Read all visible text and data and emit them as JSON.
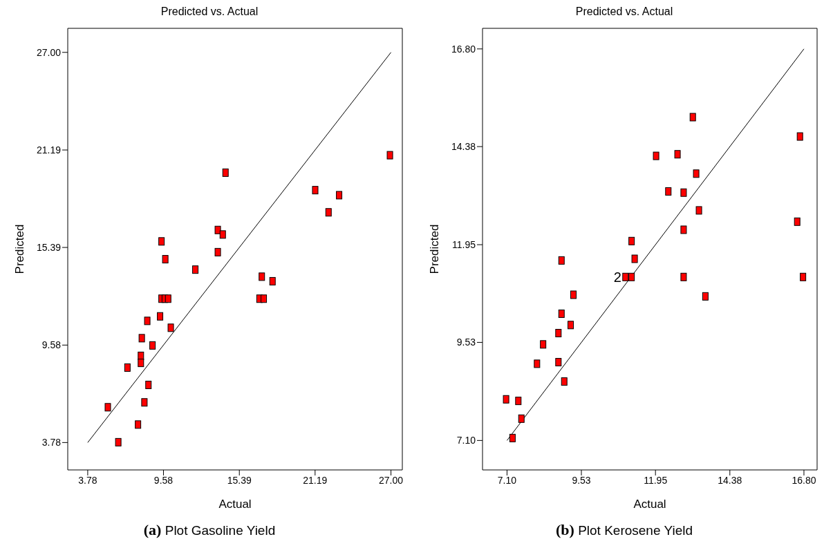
{
  "chart_data": [
    {
      "type": "scatter",
      "title": "Predicted vs. Actual",
      "xlabel": "Actual",
      "ylabel": "Predicted",
      "grid": false,
      "legend": false,
      "xlim": [
        2.25,
        27.87
      ],
      "ylim": [
        2.15,
        28.43
      ],
      "xticks": [
        3.78,
        9.58,
        15.39,
        21.19,
        {
          "value": 27,
          "label": "27.00"
        }
      ],
      "yticks": [
        3.78,
        9.58,
        15.39,
        21.19,
        {
          "value": 27,
          "label": "27.00"
        }
      ],
      "annotations": [
        "(a) Plot Gasoline Yield"
      ],
      "series": [
        {
          "marker": "square",
          "color": "#ff0000",
          "x": [
            26.92,
            14.33,
            21.2,
            23.03,
            22.22,
            13.74,
            14.12,
            9.43,
            13.74,
            9.72,
            12.02,
            17.11,
            17.93,
            9.43,
            9.68,
            9.94,
            16.93,
            17.26,
            9.32,
            8.34,
            10.14,
            7.92,
            8.74,
            7.85,
            7.85,
            6.82,
            8.43,
            8.12,
            5.32,
            7.63,
            6.12
          ],
          "values": [
            20.88,
            19.84,
            18.8,
            18.5,
            17.48,
            16.43,
            16.16,
            15.75,
            15.11,
            14.69,
            14.07,
            13.65,
            13.38,
            12.34,
            12.34,
            12.34,
            12.34,
            12.34,
            11.29,
            11.02,
            10.61,
            9.99,
            9.56,
            8.94,
            8.52,
            8.24,
            7.21,
            6.17,
            5.88,
            4.85,
            3.8
          ]
        },
        {
          "type": "line",
          "marker": "none",
          "color": "#000000",
          "x": [
            3.78,
            27
          ],
          "values": [
            3.78,
            27
          ]
        }
      ]
    },
    {
      "type": "scatter",
      "title": "Predicted vs. Actual",
      "xlabel": "Actual",
      "ylabel": "Predicted",
      "grid": false,
      "legend": false,
      "xlim": [
        6.3,
        17.23
      ],
      "ylim": [
        6.37,
        17.31
      ],
      "xticks": [
        {
          "value": 7.1,
          "label": "7.10"
        },
        9.53,
        11.95,
        14.38,
        {
          "value": 16.8,
          "label": "16.80"
        }
      ],
      "yticks": [
        {
          "value": 7.1,
          "label": "7.10"
        },
        9.53,
        11.95,
        14.38,
        {
          "value": 16.8,
          "label": "16.80"
        }
      ],
      "annotations": [
        {
          "text": "2",
          "x": 10.97,
          "y": 11.15
        },
        "(b) Plot Kerosene Yield"
      ],
      "series": [
        {
          "marker": "square",
          "color": "#ff0000",
          "x": [
            13.17,
            16.67,
            11.97,
            12.67,
            13.28,
            12.37,
            12.87,
            13.37,
            16.58,
            12.87,
            11.17,
            11.27,
            8.88,
            10.97,
            11.17,
            12.87,
            16.77,
            13.58,
            9.27,
            8.88,
            9.18,
            8.78,
            8.28,
            8.08,
            8.78,
            8.97,
            7.07,
            7.47,
            7.57,
            7.28
          ],
          "values": [
            15.11,
            14.63,
            14.15,
            14.19,
            13.71,
            13.27,
            13.24,
            12.8,
            12.52,
            12.32,
            12.04,
            11.6,
            11.56,
            11.15,
            11.15,
            11.15,
            11.15,
            10.67,
            10.71,
            10.24,
            9.96,
            9.76,
            9.48,
            9,
            9.04,
            8.56,
            8.12,
            8.08,
            7.64,
            7.16
          ]
        },
        {
          "type": "line",
          "marker": "none",
          "color": "#000000",
          "x": [
            7.1,
            16.8
          ],
          "values": [
            7.1,
            16.8
          ]
        }
      ]
    }
  ]
}
